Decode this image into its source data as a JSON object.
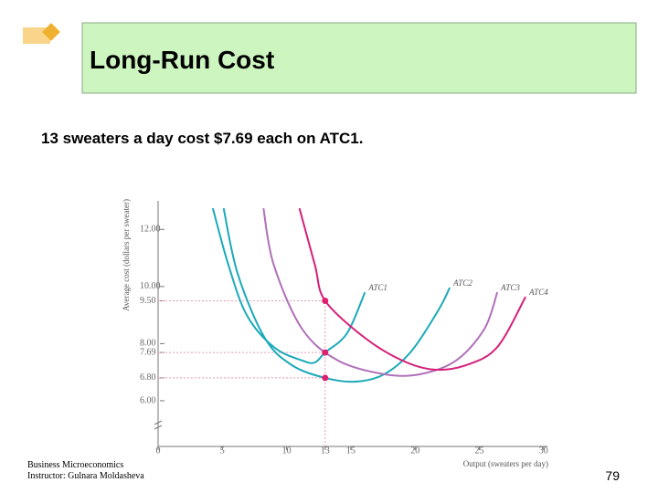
{
  "slide_title": "Long-Run Cost",
  "subtitle": "13 sweaters a day cost $7.69 each on ATC1.",
  "footer": [
    "Business Microeconomics",
    "Instructor: Gulnara Moldasheva"
  ],
  "page_number": "79",
  "chart_data": {
    "type": "line",
    "x_label": "Output (sweaters per day)",
    "y_label": "Average cost (dollars per sweater)",
    "xlim": [
      0,
      30.3
    ],
    "xticks": [
      0,
      5,
      10,
      13,
      15,
      20,
      25,
      30
    ],
    "ylim": [
      4.4,
      13
    ],
    "yticks": [
      {
        "value": 6,
        "label": "6.00"
      },
      {
        "value": 6.8,
        "label": "6.80"
      },
      {
        "value": 7.69,
        "label": "7.69"
      },
      {
        "value": 8,
        "label": "8.00"
      },
      {
        "value": 9.5,
        "label": "9.50"
      },
      {
        "value": 10,
        "label": "10.00"
      },
      {
        "value": 12,
        "label": "12.00"
      }
    ],
    "grid": false,
    "series": [
      {
        "name": "ATC1",
        "color": "#1aa9b8",
        "x": [
          4.26,
          5.47,
          6.9,
          9.0,
          11.2,
          12.2,
          13,
          14.7,
          16.1
        ],
        "values": [
          12.74,
          10.76,
          9.0,
          7.88,
          7.41,
          7.34,
          7.69,
          8.36,
          9.8
        ]
      },
      {
        "name": "ATC2",
        "color": "#1aa9b8",
        "x": [
          5.1,
          6.2,
          8.3,
          10.4,
          13,
          15.4,
          17.6,
          19.7,
          21.8,
          22.7
        ],
        "values": [
          12.74,
          10.44,
          8.2,
          7.25,
          6.8,
          6.67,
          6.93,
          7.73,
          9.16,
          9.96
        ]
      },
      {
        "name": "ATC3",
        "color": "#b070b8",
        "x": [
          8.2,
          9.0,
          11.2,
          14.0,
          17.6,
          20.4,
          23.2,
          25.4,
          26.4
        ],
        "values": [
          12.74,
          10.76,
          8.52,
          7.41,
          6.93,
          6.93,
          7.41,
          8.52,
          9.8
        ]
      },
      {
        "name": "ATC4",
        "color": "#d4207a",
        "x": [
          11.0,
          12.2,
          13,
          16.1,
          19.0,
          21.5,
          24.0,
          26.4,
          28.6
        ],
        "values": [
          12.74,
          10.76,
          9.5,
          8.2,
          7.41,
          7.09,
          7.25,
          7.88,
          9.64
        ]
      }
    ],
    "points": {
      "color": "#e0206f",
      "x": [
        13,
        13,
        13
      ],
      "values": [
        9.5,
        7.69,
        6.8
      ]
    }
  }
}
